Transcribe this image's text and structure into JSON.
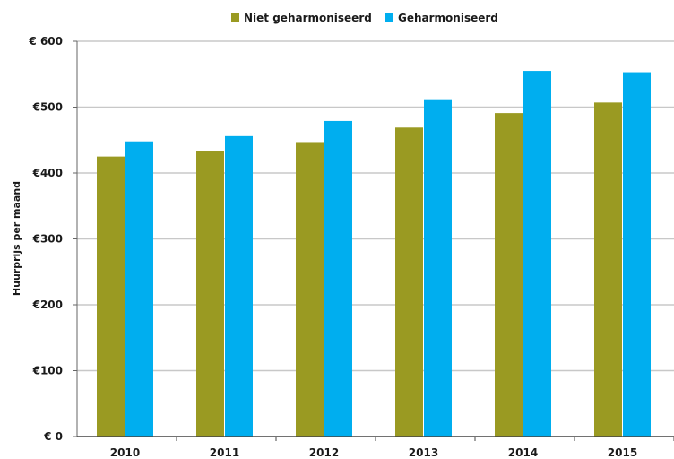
{
  "chart_data": {
    "type": "bar",
    "title": "",
    "xlabel": "",
    "ylabel": "Huurprijs per maand",
    "categories": [
      "2010",
      "2011",
      "2012",
      "2013",
      "2014",
      "2015"
    ],
    "series": [
      {
        "name": "Niet geharmoniseerd",
        "color": "#9a9a22",
        "values": [
          425,
          434,
          447,
          469,
          491,
          507
        ]
      },
      {
        "name": "Geharmoniseerd",
        "color": "#00aeef",
        "values": [
          448,
          456,
          479,
          512,
          555,
          553
        ]
      }
    ],
    "ylim": [
      0,
      600
    ],
    "yticks": [
      0,
      100,
      200,
      300,
      400,
      500,
      600
    ],
    "ytick_labels": [
      "€ 0",
      "€100",
      "€200",
      "€300",
      "€400",
      "€500",
      "€ 600"
    ],
    "grid": true,
    "legend_position": "top"
  }
}
